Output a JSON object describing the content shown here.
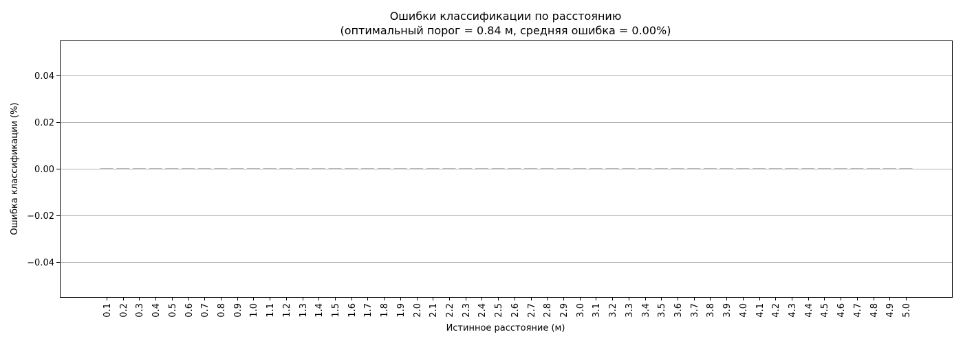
{
  "chart_data": {
    "type": "bar",
    "title": "Ошибки классификации по расстоянию",
    "subtitle": "(оптимальный порог = 0.84 м, средняя ошибка = 0.00%)",
    "xlabel": "Истинное расстояние (м)",
    "ylabel": "Ошибка классификации (%)",
    "ylim": [
      -0.055,
      0.055
    ],
    "yticks": [
      "−0.04",
      "−0.02",
      "0.00",
      "0.02",
      "0.04"
    ],
    "ytick_values": [
      -0.04,
      -0.02,
      0.0,
      0.02,
      0.04
    ],
    "grid": true,
    "bar_color": "#b8b8b8",
    "categories": [
      "0.1",
      "0.2",
      "0.3",
      "0.4",
      "0.5",
      "0.6",
      "0.7",
      "0.8",
      "0.9",
      "1.0",
      "1.1",
      "1.2",
      "1.3",
      "1.4",
      "1.5",
      "1.6",
      "1.7",
      "1.8",
      "1.9",
      "2.0",
      "2.1",
      "2.2",
      "2.3",
      "2.4",
      "2.5",
      "2.6",
      "2.7",
      "2.8",
      "2.9",
      "3.0",
      "3.1",
      "3.2",
      "3.3",
      "3.4",
      "3.5",
      "3.6",
      "3.7",
      "3.8",
      "3.9",
      "4.0",
      "4.1",
      "4.2",
      "4.3",
      "4.4",
      "4.5",
      "4.6",
      "4.7",
      "4.8",
      "4.9",
      "5.0"
    ],
    "values": [
      0,
      0,
      0,
      0,
      0,
      0,
      0,
      0,
      0,
      0,
      0,
      0,
      0,
      0,
      0,
      0,
      0,
      0,
      0,
      0,
      0,
      0,
      0,
      0,
      0,
      0,
      0,
      0,
      0,
      0,
      0,
      0,
      0,
      0,
      0,
      0,
      0,
      0,
      0,
      0,
      0,
      0,
      0,
      0,
      0,
      0,
      0,
      0,
      0,
      0
    ]
  }
}
